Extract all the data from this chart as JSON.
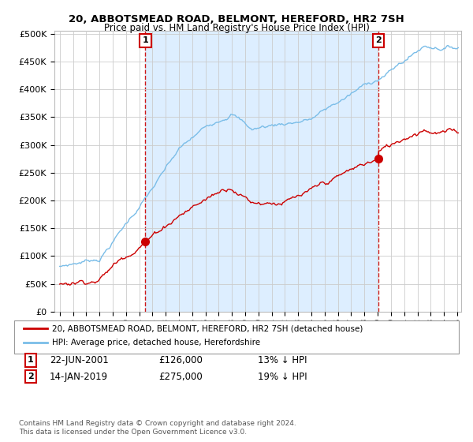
{
  "title": "20, ABBOTSMEAD ROAD, BELMONT, HEREFORD, HR2 7SH",
  "subtitle": "Price paid vs. HM Land Registry's House Price Index (HPI)",
  "legend_line1": "20, ABBOTSMEAD ROAD, BELMONT, HEREFORD, HR2 7SH (detached house)",
  "legend_line2": "HPI: Average price, detached house, Herefordshire",
  "annotation1_label": "1",
  "annotation1_date": "22-JUN-2001",
  "annotation1_price": "£126,000",
  "annotation1_hpi": "13% ↓ HPI",
  "annotation2_label": "2",
  "annotation2_date": "14-JAN-2019",
  "annotation2_price": "£275,000",
  "annotation2_hpi": "19% ↓ HPI",
  "footnote": "Contains HM Land Registry data © Crown copyright and database right 2024.\nThis data is licensed under the Open Government Licence v3.0.",
  "hpi_color": "#7abde8",
  "price_color": "#cc0000",
  "marker_color": "#cc0000",
  "annotation_box_color": "#cc0000",
  "background_color": "#ffffff",
  "grid_color": "#cccccc",
  "shading_color": "#ddeeff",
  "ylim": [
    0,
    500000
  ],
  "ylabel_ticks": [
    0,
    50000,
    100000,
    150000,
    200000,
    250000,
    300000,
    350000,
    400000,
    450000,
    500000
  ],
  "sale1_year": 2001.47,
  "sale1_price": 126000,
  "sale2_year": 2019.04,
  "sale2_price": 275000,
  "xstart": 1995,
  "xend": 2025
}
